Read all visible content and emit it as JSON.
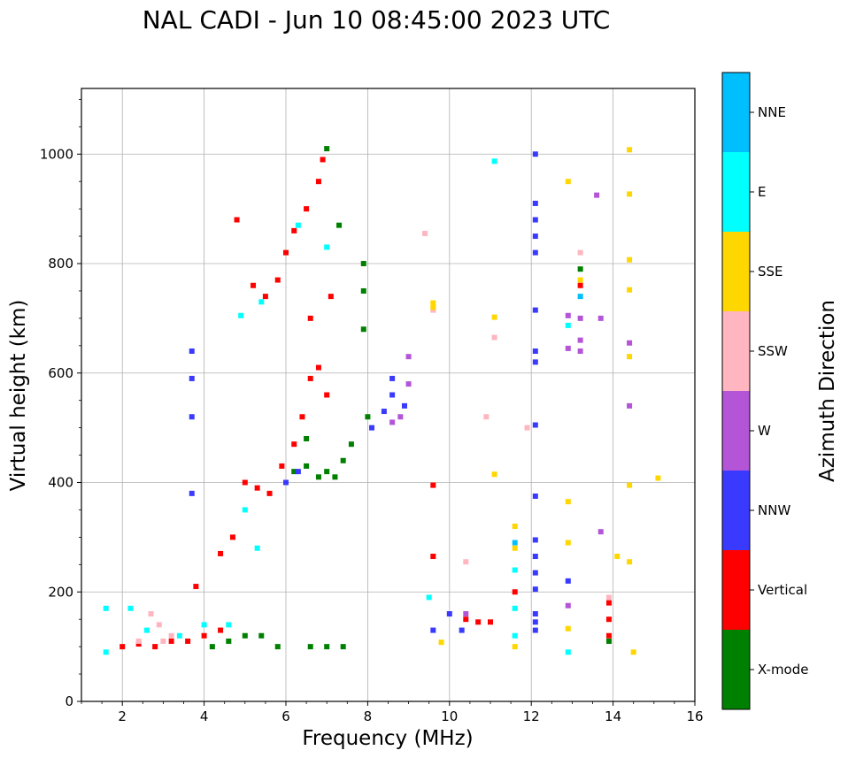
{
  "chart_data": {
    "type": "heatmap",
    "title": "NAL CADI - Jun 10 08:45:00 2023 UTC",
    "xlabel": "Frequency (MHz)",
    "ylabel": "Virtual height (km)",
    "xlim": [
      1,
      16
    ],
    "ylim": [
      0,
      1120
    ],
    "xticks": [
      2,
      4,
      6,
      8,
      10,
      12,
      14,
      16
    ],
    "yticks": [
      0,
      200,
      400,
      600,
      800,
      1000
    ],
    "grid": true,
    "colorbar": {
      "label": "Azimuth Direction",
      "categories": [
        {
          "name": "X-mode",
          "color": "#008000"
        },
        {
          "name": "Vertical",
          "color": "#ff0000"
        },
        {
          "name": "NNW",
          "color": "#3a3aff"
        },
        {
          "name": "W",
          "color": "#b455d8"
        },
        {
          "name": "SSW",
          "color": "#ffb6c1"
        },
        {
          "name": "SSE",
          "color": "#ffd700"
        },
        {
          "name": "E",
          "color": "#00ffff"
        },
        {
          "name": "NNE",
          "color": "#00bfff"
        }
      ]
    },
    "series": [
      {
        "name": "X-mode",
        "points": [
          [
            4.2,
            100
          ],
          [
            4.6,
            110
          ],
          [
            5.0,
            120
          ],
          [
            5.4,
            120
          ],
          [
            5.8,
            100
          ],
          [
            6.6,
            100
          ],
          [
            7.0,
            100
          ],
          [
            7.4,
            100
          ],
          [
            6.2,
            420
          ],
          [
            6.5,
            430
          ],
          [
            6.8,
            410
          ],
          [
            7.0,
            420
          ],
          [
            7.2,
            410
          ],
          [
            7.4,
            440
          ],
          [
            7.6,
            470
          ],
          [
            7.9,
            680
          ],
          [
            7.9,
            750
          ],
          [
            7.9,
            800
          ],
          [
            6.5,
            480
          ],
          [
            7.0,
            1010
          ],
          [
            7.3,
            870
          ],
          [
            13.2,
            790
          ],
          [
            13.9,
            110
          ],
          [
            8.0,
            520
          ]
        ]
      },
      {
        "name": "Vertical",
        "points": [
          [
            2.0,
            100
          ],
          [
            2.4,
            105
          ],
          [
            2.8,
            100
          ],
          [
            3.2,
            110
          ],
          [
            3.6,
            110
          ],
          [
            4.0,
            120
          ],
          [
            4.4,
            130
          ],
          [
            3.8,
            210
          ],
          [
            4.4,
            270
          ],
          [
            4.7,
            300
          ],
          [
            5.0,
            400
          ],
          [
            5.3,
            390
          ],
          [
            5.6,
            380
          ],
          [
            5.9,
            430
          ],
          [
            6.2,
            470
          ],
          [
            6.4,
            520
          ],
          [
            6.6,
            590
          ],
          [
            6.8,
            610
          ],
          [
            7.0,
            560
          ],
          [
            5.2,
            760
          ],
          [
            5.5,
            740
          ],
          [
            5.8,
            770
          ],
          [
            6.0,
            820
          ],
          [
            6.2,
            860
          ],
          [
            6.5,
            900
          ],
          [
            6.8,
            950
          ],
          [
            6.9,
            990
          ],
          [
            6.6,
            700
          ],
          [
            7.1,
            740
          ],
          [
            4.8,
            880
          ],
          [
            9.6,
            395
          ],
          [
            9.6,
            265
          ],
          [
            10.4,
            150
          ],
          [
            10.7,
            145
          ],
          [
            11.0,
            145
          ],
          [
            13.9,
            180
          ],
          [
            13.9,
            150
          ],
          [
            13.9,
            120
          ],
          [
            13.2,
            760
          ],
          [
            11.6,
            200
          ]
        ]
      },
      {
        "name": "NNW",
        "points": [
          [
            3.7,
            520
          ],
          [
            3.7,
            590
          ],
          [
            3.7,
            380
          ],
          [
            3.7,
            640
          ],
          [
            8.1,
            500
          ],
          [
            8.4,
            530
          ],
          [
            8.6,
            560
          ],
          [
            8.6,
            590
          ],
          [
            8.9,
            540
          ],
          [
            6.3,
            420
          ],
          [
            6.0,
            400
          ],
          [
            12.1,
            1000
          ],
          [
            12.1,
            910
          ],
          [
            12.1,
            880
          ],
          [
            12.1,
            850
          ],
          [
            12.1,
            820
          ],
          [
            12.1,
            715
          ],
          [
            12.1,
            640
          ],
          [
            12.1,
            620
          ],
          [
            12.1,
            505
          ],
          [
            12.1,
            375
          ],
          [
            12.1,
            295
          ],
          [
            12.1,
            265
          ],
          [
            12.1,
            235
          ],
          [
            12.1,
            205
          ],
          [
            12.1,
            160
          ],
          [
            12.1,
            145
          ],
          [
            12.1,
            130
          ],
          [
            12.9,
            220
          ],
          [
            10.0,
            160
          ],
          [
            10.3,
            130
          ],
          [
            9.6,
            130
          ]
        ]
      },
      {
        "name": "W",
        "points": [
          [
            8.6,
            510
          ],
          [
            8.8,
            520
          ],
          [
            9.0,
            580
          ],
          [
            9.0,
            630
          ],
          [
            10.4,
            160
          ],
          [
            12.9,
            705
          ],
          [
            13.2,
            700
          ],
          [
            13.2,
            660
          ],
          [
            13.2,
            640
          ],
          [
            12.9,
            645
          ],
          [
            13.7,
            700
          ],
          [
            13.6,
            925
          ],
          [
            13.7,
            310
          ],
          [
            12.9,
            175
          ],
          [
            14.4,
            540
          ],
          [
            14.4,
            655
          ]
        ]
      },
      {
        "name": "SSW",
        "points": [
          [
            2.4,
            110
          ],
          [
            2.7,
            160
          ],
          [
            2.9,
            140
          ],
          [
            3.2,
            120
          ],
          [
            3.0,
            110
          ],
          [
            9.4,
            855
          ],
          [
            9.6,
            715
          ],
          [
            10.4,
            255
          ],
          [
            10.9,
            520
          ],
          [
            11.1,
            665
          ],
          [
            11.9,
            500
          ],
          [
            13.2,
            820
          ],
          [
            13.9,
            190
          ]
        ]
      },
      {
        "name": "SSE",
        "points": [
          [
            9.6,
            728
          ],
          [
            11.1,
            702
          ],
          [
            11.1,
            415
          ],
          [
            11.6,
            320
          ],
          [
            11.6,
            280
          ],
          [
            11.6,
            100
          ],
          [
            12.9,
            950
          ],
          [
            12.9,
            365
          ],
          [
            12.9,
            290
          ],
          [
            12.9,
            133
          ],
          [
            13.2,
            770
          ],
          [
            14.4,
            1008
          ],
          [
            14.4,
            927
          ],
          [
            14.4,
            807
          ],
          [
            14.4,
            752
          ],
          [
            14.4,
            630
          ],
          [
            14.4,
            395
          ],
          [
            14.4,
            255
          ],
          [
            14.5,
            90
          ],
          [
            15.1,
            408
          ],
          [
            14.1,
            265
          ],
          [
            9.8,
            108
          ],
          [
            9.6,
            720
          ]
        ]
      },
      {
        "name": "E",
        "points": [
          [
            1.6,
            90
          ],
          [
            1.6,
            170
          ],
          [
            2.2,
            170
          ],
          [
            2.6,
            130
          ],
          [
            3.4,
            120
          ],
          [
            4.0,
            140
          ],
          [
            4.6,
            140
          ],
          [
            5.0,
            350
          ],
          [
            5.3,
            280
          ],
          [
            4.9,
            705
          ],
          [
            5.4,
            730
          ],
          [
            6.3,
            870
          ],
          [
            7.0,
            830
          ],
          [
            11.1,
            987
          ],
          [
            11.6,
            170
          ],
          [
            11.6,
            120
          ],
          [
            11.6,
            240
          ],
          [
            12.9,
            90
          ],
          [
            12.9,
            687
          ],
          [
            9.5,
            190
          ]
        ]
      },
      {
        "name": "NNE",
        "points": [
          [
            13.2,
            740
          ],
          [
            11.6,
            290
          ]
        ]
      }
    ]
  }
}
